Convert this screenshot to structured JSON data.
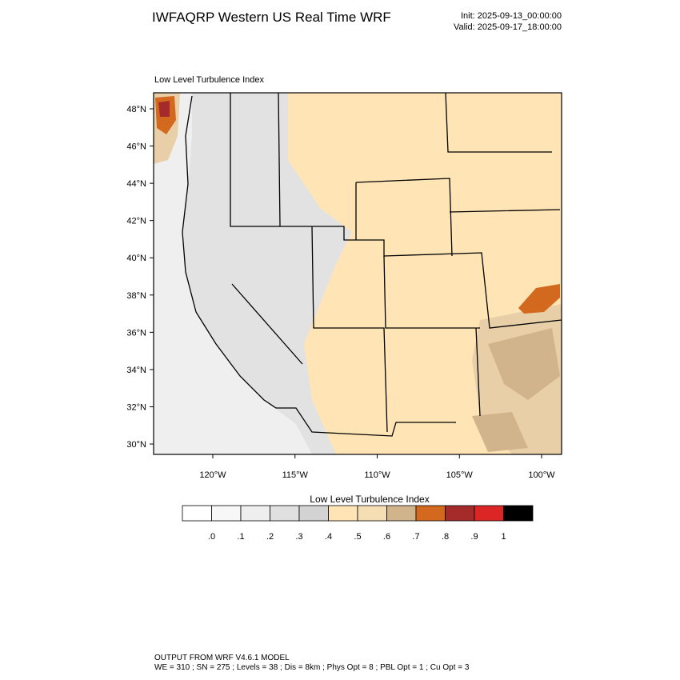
{
  "header": {
    "title": "IWFAQRP Western US Real Time WRF",
    "init": "Init: 2025-09-13_00:00:00",
    "valid": "Valid: 2025-09-17_18:00:00"
  },
  "map": {
    "subtitle": "Low Level Turbulence Index",
    "lat_ticks": [
      {
        "value": 48,
        "label": "48°N"
      },
      {
        "value": 46,
        "label": "46°N"
      },
      {
        "value": 44,
        "label": "44°N"
      },
      {
        "value": 42,
        "label": "42°N"
      },
      {
        "value": 40,
        "label": "40°N"
      },
      {
        "value": 38,
        "label": "38°N"
      },
      {
        "value": 36,
        "label": "36°N"
      },
      {
        "value": 34,
        "label": "34°N"
      },
      {
        "value": 32,
        "label": "32°N"
      },
      {
        "value": 30,
        "label": "30°N"
      }
    ],
    "lon_ticks": [
      {
        "value": -120,
        "label": "120°W"
      },
      {
        "value": -115,
        "label": "115°W"
      },
      {
        "value": -110,
        "label": "110°W"
      },
      {
        "value": -105,
        "label": "105°W"
      },
      {
        "value": -100,
        "label": "100°W"
      }
    ]
  },
  "colorbar": {
    "title": "Low Level Turbulence Index",
    "colors": [
      "#ffffff",
      "#f7f7f7",
      "#eeeeee",
      "#e0e0e0",
      "#d3d3d3",
      "#ffe4b5",
      "#f5deb3",
      "#d2b48c",
      "#d2691e",
      "#a52a2a",
      "#dc2626",
      "#000000"
    ],
    "ticks": [
      {
        "value": 0,
        "label": ".0"
      },
      {
        "value": 0.1,
        "label": ".1"
      },
      {
        "value": 0.2,
        "label": ".2"
      },
      {
        "value": 0.3,
        "label": ".3"
      },
      {
        "value": 0.4,
        "label": ".4"
      },
      {
        "value": 0.5,
        "label": ".5"
      },
      {
        "value": 0.6,
        "label": ".6"
      },
      {
        "value": 0.7,
        "label": ".7"
      },
      {
        "value": 0.8,
        "label": ".8"
      },
      {
        "value": 0.9,
        "label": ".9"
      },
      {
        "value": 1,
        "label": "1"
      }
    ]
  },
  "footer": {
    "line1": "OUTPUT FROM WRF V4.6.1 MODEL",
    "line2": "WE = 310 ; SN = 275 ; Levels = 38 ; Dis = 8km ; Phys Opt = 8 ; PBL Opt = 1 ; Cu Opt = 3"
  }
}
